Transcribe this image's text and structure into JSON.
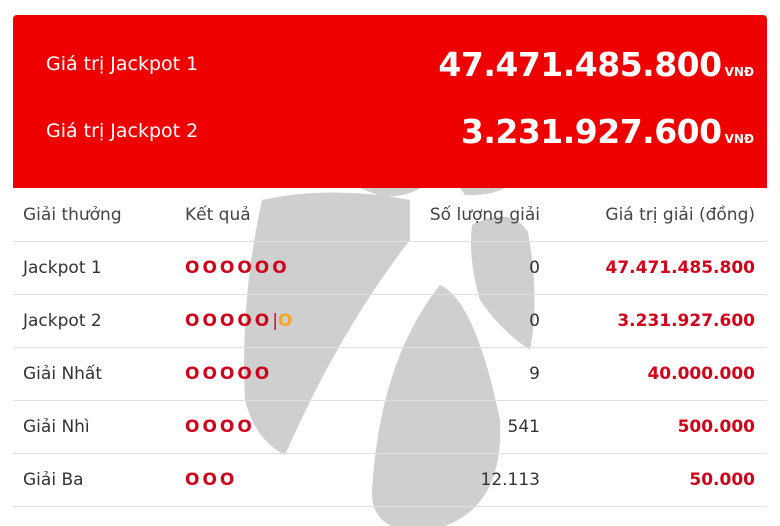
{
  "jackpots": [
    {
      "label": "Giá trị Jackpot 1",
      "value": "47.471.485.800",
      "currency": "VNĐ"
    },
    {
      "label": "Giá trị Jackpot 2",
      "value": "3.231.927.600",
      "currency": "VNĐ"
    }
  ],
  "table": {
    "headers": [
      "Giải thưởng",
      "Kết quả",
      "Số lượng giải",
      "Giá trị giải (đồng)"
    ],
    "rows": [
      {
        "prize": "Jackpot 1",
        "result": "OOOOOO",
        "bonus": "",
        "count": "0",
        "value": "47.471.485.800"
      },
      {
        "prize": "Jackpot 2",
        "result": "OOOOO",
        "bonus": "O",
        "count": "0",
        "value": "3.231.927.600"
      },
      {
        "prize": "Giải Nhất",
        "result": "OOOOO",
        "bonus": "",
        "count": "9",
        "value": "40.000.000"
      },
      {
        "prize": "Giải Nhì",
        "result": "OOOO",
        "bonus": "",
        "count": "541",
        "value": "500.000"
      },
      {
        "prize": "Giải Ba",
        "result": "OOO",
        "bonus": "",
        "count": "12.113",
        "value": "50.000"
      }
    ]
  },
  "colors": {
    "banner": "#ef0000",
    "value": "#d0021b",
    "bonus": "#f5a623"
  }
}
